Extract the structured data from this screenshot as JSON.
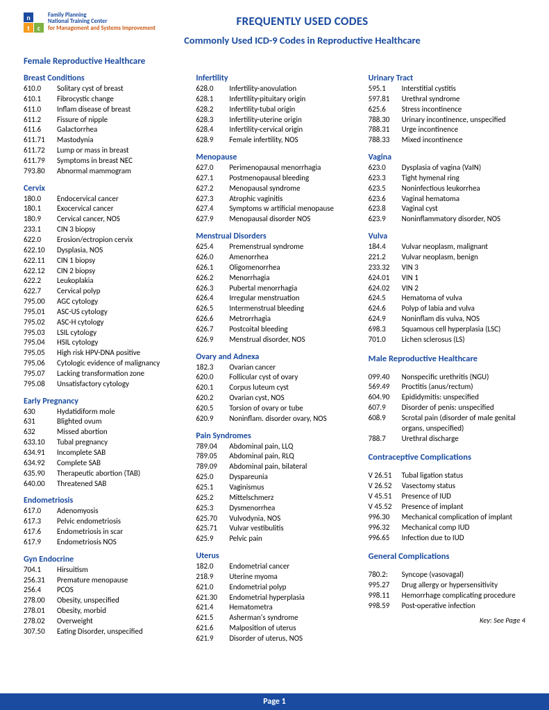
{
  "logo": {
    "org_line1": "Family Planning",
    "org_line2": "National Training Center",
    "org_line3": "for Management and Systems Improvement"
  },
  "title1": "FREQUENTLY USED CODES",
  "title2": "Commonly Used ICD-9 Codes in Reproductive Healthcare",
  "section_female": "Female Reproductive Healthcare",
  "section_male": "Male Reproductive Healthcare",
  "section_contra": "Contraceptive Complications",
  "section_general": "General Complications",
  "key_text": "Key: See Page 4",
  "footer": "Page 1",
  "col1": [
    {
      "title": "Breast Conditions",
      "rows": [
        [
          "610.0",
          "Solitary cyst of breast"
        ],
        [
          "610.1",
          "Fibrocystic change"
        ],
        [
          "611.0",
          "Inflam disease of breast"
        ],
        [
          "611.2",
          "Fissure of nipple"
        ],
        [
          "611.6",
          "Galactorrhea"
        ],
        [
          "611.71",
          "Mastodynia"
        ],
        [
          "611.72",
          "Lump or mass in breast"
        ],
        [
          "611.79",
          "Symptoms in breast NEC"
        ],
        [
          "793.80",
          "Abnormal mammogram"
        ]
      ]
    },
    {
      "title": "Cervix",
      "rows": [
        [
          "180.0",
          "Endocervical cancer"
        ],
        [
          "180.1",
          "Exocervical cancer"
        ],
        [
          "180.9",
          "Cervical cancer, NOS"
        ],
        [
          "233.1",
          "CIN 3 biopsy"
        ],
        [
          "622.0",
          "Erosion/ectropion cervix"
        ],
        [
          "622.10",
          "Dysplasia, NOS"
        ],
        [
          "622.11",
          "CIN 1 biopsy"
        ],
        [
          "622.12",
          "CIN 2 biopsy"
        ],
        [
          "622.2",
          "Leukoplakia"
        ],
        [
          "622.7",
          "Cervical polyp"
        ],
        [
          "795.00",
          "AGC cytology"
        ],
        [
          "795.01",
          "ASC-US cytology"
        ],
        [
          "795.02",
          "ASC-H cytology"
        ],
        [
          "795.03",
          "LSIL cytology"
        ],
        [
          "795.04",
          "HSIL cytology"
        ],
        [
          "795.05",
          "High risk HPV-DNA positive"
        ],
        [
          "795.06",
          "Cytologic evidence of malignancy"
        ],
        [
          "795.07",
          "Lacking transformation zone"
        ],
        [
          "795.08",
          "Unsatisfactory cytology"
        ]
      ]
    },
    {
      "title": "Early Pregnancy",
      "rows": [
        [
          "630",
          "Hydatidiform mole"
        ],
        [
          "631",
          "Blighted ovum"
        ],
        [
          "632",
          "Missed abortion"
        ],
        [
          "633.10",
          "Tubal pregnancy"
        ],
        [
          "634.91",
          "Incomplete SAB"
        ],
        [
          "634.92",
          "Complete SAB"
        ],
        [
          "635.90",
          "Therapeutic abortion (TAB)"
        ],
        [
          "640.00",
          "Threatened SAB"
        ]
      ]
    },
    {
      "title": "Endometriosis",
      "rows": [
        [
          "617.0",
          "Adenomyosis"
        ],
        [
          "617.3",
          "Pelvic endometriosis"
        ],
        [
          "617.6",
          "Endometriosis in scar"
        ],
        [
          "617.9",
          "Endometriosis NOS"
        ]
      ]
    },
    {
      "title": "Gyn Endocrine",
      "rows": [
        [
          "704.1",
          "Hirsuitism"
        ],
        [
          "256.31",
          "Premature menopause"
        ],
        [
          "256.4",
          "PCOS"
        ],
        [
          "278.00",
          "Obesity, unspecified"
        ],
        [
          "278.01",
          "Obesity, morbid"
        ],
        [
          "278.02",
          "Overweight"
        ],
        [
          "307.50",
          "Eating Disorder, unspecified"
        ]
      ]
    }
  ],
  "col2": [
    {
      "title": "Infertility",
      "rows": [
        [
          "628.0",
          "Infertility-anovulation"
        ],
        [
          "628.1",
          "Infertility-pituitary origin"
        ],
        [
          "628.2",
          "Infertility-tubal origin"
        ],
        [
          "628.3",
          "Infertility-uterine origin"
        ],
        [
          "628.4",
          "Infertility-cervical origin"
        ],
        [
          "628.9",
          "Female infertility, NOS"
        ]
      ]
    },
    {
      "title": "Menopause",
      "rows": [
        [
          "627.0",
          "Perimenopausal menorrhagia"
        ],
        [
          "627.1",
          "Postmenopausal bleeding"
        ],
        [
          "627.2",
          "Menopausal syndrome"
        ],
        [
          "627.3",
          "Atrophic vaginitis"
        ],
        [
          "627.4",
          "Symptoms w artificial menopause"
        ],
        [
          "627.9",
          "Menopausal disorder NOS"
        ]
      ]
    },
    {
      "title": "Menstrual Disorders",
      "rows": [
        [
          "625.4",
          "Premenstrual syndrome"
        ],
        [
          "626.0",
          "Amenorrhea"
        ],
        [
          "626.1",
          "Oligomenorrhea"
        ],
        [
          "626.2",
          "Menorrhagia"
        ],
        [
          "626.3",
          "Pubertal menorrhagia"
        ],
        [
          "626.4",
          "Irregular menstruation"
        ],
        [
          "626.5",
          "Intermenstrual bleeding"
        ],
        [
          "626.6",
          "Metrorrhagia"
        ],
        [
          "626.7",
          "Postcoital bleeding"
        ],
        [
          "626.9",
          "Menstrual disorder, NOS"
        ]
      ]
    },
    {
      "title": "Ovary and Adnexa",
      "rows": [
        [
          "182.3",
          "Ovarian cancer"
        ],
        [
          "620.0",
          "Follicular cyst of ovary"
        ],
        [
          "620.1",
          "Corpus luteum cyst"
        ],
        [
          "620.2",
          "Ovarian cyst, NOS"
        ],
        [
          "620.5",
          "Torsion of ovary or tube"
        ],
        [
          "620.9",
          "Noninflam. disorder ovary, NOS"
        ]
      ]
    },
    {
      "title": "Pain Syndromes",
      "rows": [
        [
          "789.04",
          "Abdominal pain, LLQ"
        ],
        [
          "789.05",
          "Abdominal pain, RLQ"
        ],
        [
          "789.09",
          "Abdominal pain, bilateral"
        ],
        [
          "625.0",
          "Dyspareunia"
        ],
        [
          "625.1",
          "Vaginismus"
        ],
        [
          "625.2",
          "Mittelschmerz"
        ],
        [
          "625.3",
          "Dysmenorrhea"
        ],
        [
          "625.70",
          "Vulvodynia, NOS"
        ],
        [
          "625.71",
          "Vulvar vestibulitis"
        ],
        [
          "625.9",
          "Pelvic pain"
        ]
      ]
    },
    {
      "title": "Uterus",
      "rows": [
        [
          "182.0",
          "Endometrial cancer"
        ],
        [
          "218.9",
          "Uterine myoma"
        ],
        [
          "621.0",
          "Endometrial polyp"
        ],
        [
          "621.30",
          "Endometrial hyperplasia"
        ],
        [
          "621.4",
          "Hematometra"
        ],
        [
          "621.5",
          "Asherman's syndrome"
        ],
        [
          "621.6",
          "Malposition of uterus"
        ],
        [
          "621.9",
          "Disorder of uterus, NOS"
        ]
      ]
    }
  ],
  "col3_top": [
    {
      "title": "Urinary Tract",
      "rows": [
        [
          "595.1",
          "Interstitial cystitis"
        ],
        [
          "597.81",
          "Urethral syndrome"
        ],
        [
          "625.6",
          "Stress incontinence"
        ],
        [
          "788.30",
          "Urinary incontinence, unspecified"
        ],
        [
          "788.31",
          "Urge incontinence"
        ],
        [
          "788.33",
          "Mixed incontinence"
        ]
      ]
    },
    {
      "title": "Vagina",
      "rows": [
        [
          "623.0",
          "Dysplasia of vagina (VaIN)"
        ],
        [
          "623.3",
          "Tight hymenal ring"
        ],
        [
          "623.5",
          "Noninfectious leukorrhea"
        ],
        [
          "623.6",
          "Vaginal hematoma"
        ],
        [
          "623.8",
          "Vaginal cyst"
        ],
        [
          "623.9",
          "Noninflammatory disorder, NOS"
        ]
      ]
    },
    {
      "title": "Vulva",
      "rows": [
        [
          "184.4",
          "Vulvar neoplasm, malignant"
        ],
        [
          "221.2",
          "Vulvar neoplasm, benign"
        ],
        [
          "233.32",
          "VIN 3"
        ],
        [
          "624.01",
          "VIN 1"
        ],
        [
          "624.02",
          "VIN 2"
        ],
        [
          "624.5",
          "Hematoma of vulva"
        ],
        [
          "624.6",
          "Polyp of labia and vulva"
        ],
        [
          "624.9",
          "Noninflam dis vulva, NOS"
        ],
        [
          "698.3",
          "Squamous cell hyperplasia (LSC)"
        ],
        [
          "701.0",
          "Lichen sclerosus (LS)"
        ]
      ]
    }
  ],
  "col3_male": [
    [
      "099.40",
      "Nonspecific urethritis (NGU)"
    ],
    [
      "569.49",
      "Proctitis (anus/rectum)"
    ],
    [
      "604.90",
      "Epididymitis: unspecified"
    ],
    [
      "607.9",
      "Disorder of penis: unspecified"
    ],
    [
      "608.9",
      "Scrotal pain (disorder of male genital organs, unspecified)"
    ],
    [
      "788.7",
      "Urethral discharge"
    ]
  ],
  "col3_contra": [
    [
      "V 26.51",
      "Tubal ligation status"
    ],
    [
      "V 26.52",
      "Vasectomy status"
    ],
    [
      "V 45.51",
      "Presence of IUD"
    ],
    [
      "V 45.52",
      "Presence of implant"
    ],
    [
      "996.30",
      "Mechanical complication of implant"
    ],
    [
      "996.32",
      "Mechanical comp IUD"
    ],
    [
      "996.65",
      "Infection due to IUD"
    ]
  ],
  "col3_general": [
    [
      "780.2:",
      "Syncope (vasovagal)"
    ],
    [
      "995.27",
      "Drug allergy or hypersensitivity"
    ],
    [
      "998.11",
      "Hemorrhage complicating procedure"
    ],
    [
      "998.59",
      "Post-operative infection"
    ]
  ]
}
